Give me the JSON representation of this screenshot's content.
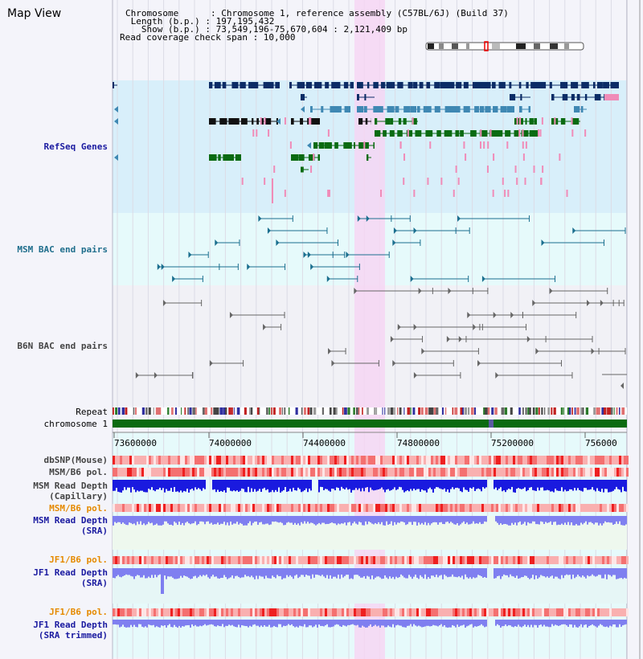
{
  "header": {
    "title": "Map View",
    "chromosome_line": "Chromosome      : Chromosome 1, reference assembly (C57BL/6J) (Build 37)",
    "length_line": " Length (b.p.) : 197,195,432",
    "show_line": "   Show (b.p.) : 73,549,196-75,670,604 : 2,121,409 bp",
    "coverage_line": "Read coverage check span : 10,000"
  },
  "tracks": {
    "refseq": "RefSeq Genes",
    "msm_bac": "MSM BAC end pairs",
    "b6n_bac": "B6N BAC end pairs",
    "repeat": "Repeat",
    "chromosome": "chromosome 1",
    "dbsnp": "dbSNP(Mouse)",
    "msm_b6_pol_1": "MSM/B6 pol.",
    "msm_read_depth_cap_1": "MSM Read Depth",
    "msm_read_depth_cap_2": "(Capillary)",
    "msm_b6_pol_2": "MSM/B6 pol.",
    "msm_read_depth_sra_1": "MSM Read Depth",
    "msm_read_depth_sra_2": "(SRA)",
    "jf1_b6_pol_1": "JF1/B6 pol.",
    "jf1_read_depth_sra_1": "JF1 Read Depth",
    "jf1_read_depth_sra_2": "(SRA)",
    "jf1_b6_pol_2": "JF1/B6 pol.",
    "jf1_read_depth_trim_1": "JF1 Read Depth",
    "jf1_read_depth_trim_2": "(SRA trimmed)"
  },
  "axis": {
    "ticks": [
      "73600000",
      "74000000",
      "74400000",
      "74800000",
      "75200000",
      "756000"
    ]
  },
  "colors": {
    "refseq_bg": "#d8effa",
    "bac_bg": "#e6fafb",
    "highlight": "#f6d6f3",
    "gene_dark": "#0b2c66",
    "gene_mid": "#3f88b3",
    "gene_green": "#0a6b12",
    "gene_pink": "#f08cb8",
    "chromosome": "#0b6b10",
    "depth_blue": "#1a1adf",
    "depth_lav": "#7f7ff0",
    "pol_red": "#f24a4a"
  }
}
